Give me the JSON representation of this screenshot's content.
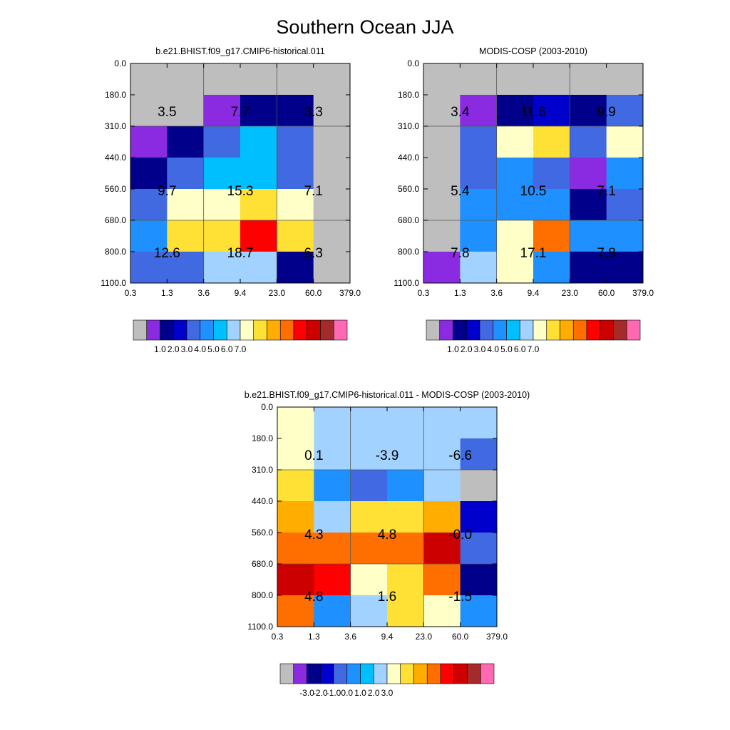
{
  "figure_title": "Southern Ocean JJA",
  "x_tick_labels": [
    "0.3",
    "1.3",
    "3.6",
    "9.4",
    "23.0",
    "60.0",
    "379.0"
  ],
  "y_tick_labels": [
    "0.0",
    "180.0",
    "310.0",
    "440.0",
    "560.0",
    "680.0",
    "800.0",
    "1100.0"
  ],
  "palette": [
    "#bebebe",
    "#8a2be2",
    "#00008b",
    "#0000cd",
    "#4169e1",
    "#1e90ff",
    "#00bfff",
    "#a2d2ff",
    "#ffffc8",
    "#ffe135",
    "#ffad01",
    "#ff6f00",
    "#ff0000",
    "#cd0000",
    "#a52a2a",
    "#ff69b4"
  ],
  "chart_data": [
    {
      "type": "heatmap",
      "id": "model",
      "title": "b.e21.BHIST.f09_g17.CMIP6-historical.011",
      "xlabel": "",
      "ylabel": "",
      "cells": [
        [
          0,
          0,
          0,
          0,
          0,
          0
        ],
        [
          0,
          0,
          1,
          2,
          2,
          0
        ],
        [
          1,
          2,
          4,
          6,
          4,
          0
        ],
        [
          2,
          4,
          6,
          6,
          4,
          0
        ],
        [
          4,
          8,
          8,
          9,
          8,
          0
        ],
        [
          5,
          9,
          9,
          12,
          9,
          0
        ],
        [
          4,
          4,
          7,
          7,
          2,
          0
        ]
      ],
      "group_values": [
        [
          "3.5",
          "7.7",
          "3.3"
        ],
        [
          "9.7",
          "15.3",
          "7.1"
        ],
        [
          "12.6",
          "18.7",
          "6.3"
        ]
      ],
      "colorbar_labels": [
        "1.0",
        "2.0",
        "3.0",
        "4.0",
        "5.0",
        "6.0",
        "7.0"
      ]
    },
    {
      "type": "heatmap",
      "id": "obs",
      "title": "MODIS-COSP (2003-2010)",
      "xlabel": "",
      "ylabel": "",
      "cells": [
        [
          0,
          0,
          0,
          0,
          0,
          0
        ],
        [
          0,
          1,
          2,
          3,
          2,
          4
        ],
        [
          0,
          4,
          8,
          9,
          4,
          8
        ],
        [
          0,
          4,
          5,
          4,
          1,
          5
        ],
        [
          0,
          5,
          5,
          5,
          2,
          4
        ],
        [
          0,
          5,
          8,
          11,
          5,
          5
        ],
        [
          1,
          7,
          8,
          5,
          2,
          2
        ]
      ],
      "group_values": [
        [
          "3.4",
          "11.6",
          "9.9"
        ],
        [
          "5.4",
          "10.5",
          "7.1"
        ],
        [
          "7.8",
          "17.1",
          "7.8"
        ]
      ],
      "colorbar_labels": [
        "1.0",
        "2.0",
        "3.0",
        "4.0",
        "5.0",
        "6.0",
        "7.0"
      ]
    },
    {
      "type": "heatmap",
      "id": "diff",
      "title": "b.e21.BHIST.f09_g17.CMIP6-historical.011 - MODIS-COSP (2003-2010)",
      "xlabel": "",
      "ylabel": "",
      "cells": [
        [
          8,
          7,
          7,
          7,
          7,
          7
        ],
        [
          8,
          7,
          7,
          7,
          7,
          4
        ],
        [
          9,
          5,
          4,
          5,
          7,
          0
        ],
        [
          10,
          7,
          9,
          9,
          10,
          3
        ],
        [
          11,
          11,
          11,
          11,
          13,
          4
        ],
        [
          13,
          12,
          8,
          9,
          11,
          2
        ],
        [
          11,
          5,
          7,
          9,
          8,
          5
        ]
      ],
      "group_values": [
        [
          "0.1",
          "-3.9",
          "-6.6"
        ],
        [
          "4.3",
          "4.8",
          "-0.0"
        ],
        [
          "4.8",
          "1.6",
          "-1.5"
        ]
      ],
      "colorbar_labels": [
        "-3.0",
        "-2.0",
        "-1.0",
        "0.0",
        "1.0",
        "2.0",
        "3.0"
      ]
    }
  ]
}
